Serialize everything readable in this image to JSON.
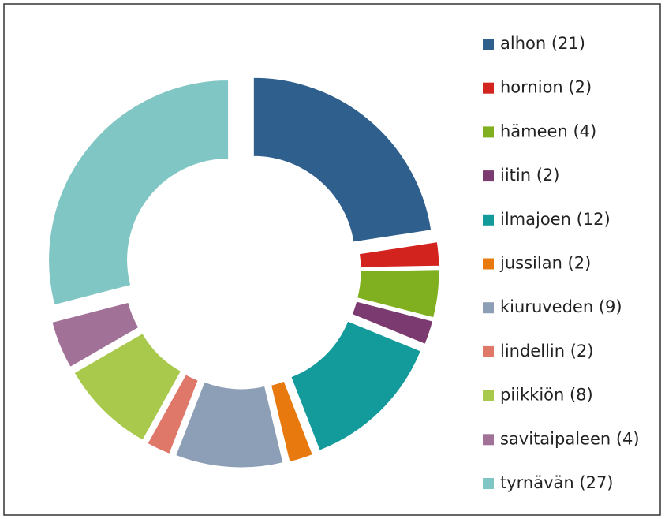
{
  "chart_data": {
    "type": "donut",
    "categories": [
      "alhon (21)",
      "hornion (2)",
      "hämeen (4)",
      "iitin (2)",
      "ilmajoen (12)",
      "jussilan (2)",
      "kiuruveden (9)",
      "lindellin (2)",
      "piikkiön (8)",
      "savitaipaleen (4)",
      "tyrnävän (27)"
    ],
    "values": [
      21,
      2,
      4,
      2,
      12,
      2,
      9,
      2,
      8,
      4,
      27
    ],
    "colors": [
      "#2f5f8c",
      "#d3231f",
      "#80b020",
      "#7b3b70",
      "#139b9b",
      "#e8790f",
      "#8d9fb6",
      "#e0786a",
      "#a9c94c",
      "#a17197",
      "#80c6c4"
    ],
    "legend": "right"
  }
}
